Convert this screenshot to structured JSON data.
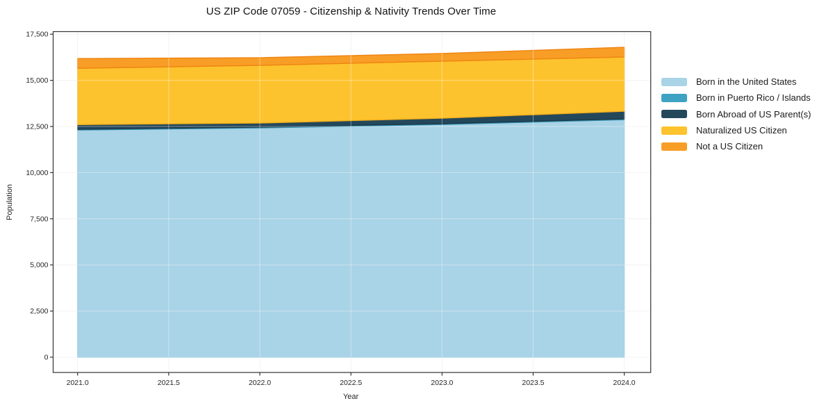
{
  "title": "US ZIP Code 07059 - Citizenship & Nativity Trends Over Time",
  "axes": {
    "x_label": "Year",
    "y_label": "Population",
    "x_ticks": [
      "2021.0",
      "2021.5",
      "2022.0",
      "2022.5",
      "2023.0",
      "2023.5",
      "2024.0"
    ],
    "y_ticks": [
      "0",
      "2,500",
      "5,000",
      "7,500",
      "10,000",
      "12,500",
      "15,000",
      "17,500"
    ]
  },
  "style": {
    "background": "#ffffff",
    "grid_color": "#ebebeb",
    "grid_overlay_color": "rgba(255,255,255,0.4)",
    "spine_color": "#333333",
    "tick_text_color": "#262626"
  },
  "chart_data": {
    "type": "area",
    "stacked": true,
    "title": "US ZIP Code 07059 - Citizenship & Nativity Trends Over Time",
    "xlabel": "Year",
    "ylabel": "Population",
    "x": [
      2021,
      2022,
      2023,
      2024
    ],
    "xlim": [
      2021,
      2024
    ],
    "ylim": [
      0,
      17500
    ],
    "x_tick_step": 0.5,
    "y_tick_step": 2500,
    "grid": true,
    "legend_position": "center-right-outside",
    "series": [
      {
        "name": "Born in the United States",
        "color": "#a9d3e6",
        "edge": "#8ec4dd",
        "values": [
          12310,
          12425,
          12610,
          12870
        ]
      },
      {
        "name": "Born in Puerto Rico / Islands",
        "color": "#3ea2c3",
        "edge": "#3591b2",
        "values": [
          40,
          40,
          40,
          45
        ]
      },
      {
        "name": "Born Abroad of US Parent(s)",
        "color": "#24485b",
        "edge": "#1c3a4a",
        "values": [
          250,
          225,
          300,
          415
        ]
      },
      {
        "name": "Naturalized US Citizen",
        "color": "#fdc32e",
        "edge": "#f3b01b",
        "values": [
          3050,
          3125,
          3090,
          2935
        ]
      },
      {
        "name": "Not a US Citizen",
        "color": "#f89e27",
        "edge": "#ef8512",
        "values": [
          530,
          410,
          415,
          525
        ]
      }
    ],
    "stacked_totals": [
      16180,
      16225,
      16455,
      16790
    ]
  }
}
